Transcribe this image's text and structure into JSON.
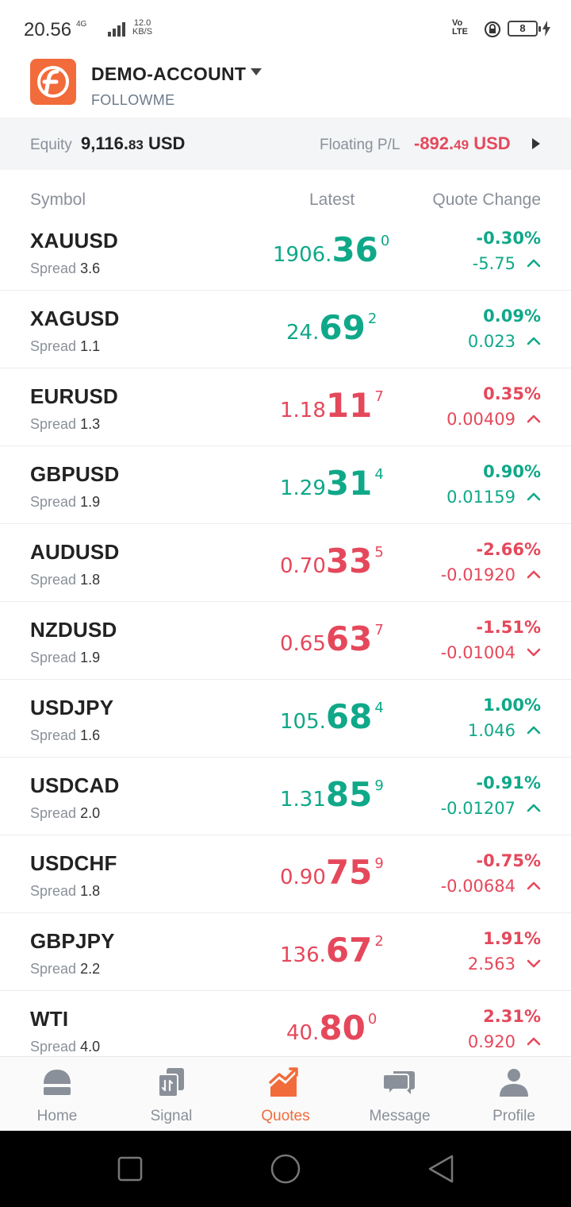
{
  "status_bar": {
    "time": "20.56",
    "network": "4G",
    "speed_value": "12.0",
    "speed_unit": "KB/S",
    "volte": "Vo LTE",
    "battery": "8"
  },
  "account": {
    "name": "DEMO-ACCOUNT",
    "broker": "FOLLOWME"
  },
  "equity": {
    "label": "Equity",
    "value_main": "9,116.",
    "value_dec": "83",
    "currency": " USD"
  },
  "floating": {
    "label": "Floating P/L",
    "value_main": "-892.",
    "value_dec": "49",
    "currency": " USD"
  },
  "columns": {
    "symbol": "Symbol",
    "latest": "Latest",
    "change": "Quote Change"
  },
  "spread_label": "Spread",
  "quotes": [
    {
      "symbol": "XAUUSD",
      "spread": "3.6",
      "price_a": "1906.",
      "price_b": "36",
      "price_c": "0",
      "pct": "-0.30%",
      "chg": "-5.75",
      "color": "green",
      "dir": "up"
    },
    {
      "symbol": "XAGUSD",
      "spread": "1.1",
      "price_a": "24.",
      "price_b": "69",
      "price_c": "2",
      "pct": "0.09%",
      "chg": "0.023",
      "color": "green",
      "dir": "up"
    },
    {
      "symbol": "EURUSD",
      "spread": "1.3",
      "price_a": "1.18",
      "price_b": "11",
      "price_c": "7",
      "pct": "0.35%",
      "chg": "0.00409",
      "color": "red",
      "dir": "up"
    },
    {
      "symbol": "GBPUSD",
      "spread": "1.9",
      "price_a": "1.29",
      "price_b": "31",
      "price_c": "4",
      "pct": "0.90%",
      "chg": "0.01159",
      "color": "green",
      "dir": "up"
    },
    {
      "symbol": "AUDUSD",
      "spread": "1.8",
      "price_a": "0.70",
      "price_b": "33",
      "price_c": "5",
      "pct": "-2.66%",
      "chg": "-0.01920",
      "color": "red",
      "dir": "up"
    },
    {
      "symbol": "NZDUSD",
      "spread": "1.9",
      "price_a": "0.65",
      "price_b": "63",
      "price_c": "7",
      "pct": "-1.51%",
      "chg": "-0.01004",
      "color": "red",
      "dir": "down"
    },
    {
      "symbol": "USDJPY",
      "spread": "1.6",
      "price_a": "105.",
      "price_b": "68",
      "price_c": "4",
      "pct": "1.00%",
      "chg": "1.046",
      "color": "green",
      "dir": "up"
    },
    {
      "symbol": "USDCAD",
      "spread": "2.0",
      "price_a": "1.31",
      "price_b": "85",
      "price_c": "9",
      "pct": "-0.91%",
      "chg": "-0.01207",
      "color": "green",
      "dir": "up"
    },
    {
      "symbol": "USDCHF",
      "spread": "1.8",
      "price_a": "0.90",
      "price_b": "75",
      "price_c": "9",
      "pct": "-0.75%",
      "chg": "-0.00684",
      "color": "red",
      "dir": "up"
    },
    {
      "symbol": "GBPJPY",
      "spread": "2.2",
      "price_a": "136.",
      "price_b": "67",
      "price_c": "2",
      "pct": "1.91%",
      "chg": "2.563",
      "color": "red",
      "dir": "down"
    },
    {
      "symbol": "WTI",
      "spread": "4.0",
      "price_a": "40.",
      "price_b": "80",
      "price_c": "0",
      "pct": "2.31%",
      "chg": "0.920",
      "color": "red",
      "dir": "up"
    }
  ],
  "nav": {
    "home": "Home",
    "signal": "Signal",
    "quotes": "Quotes",
    "message": "Message",
    "profile": "Profile",
    "active": "quotes"
  },
  "colors": {
    "up": "#0fa889",
    "down": "#e5485b",
    "accent": "#f26b3a"
  }
}
